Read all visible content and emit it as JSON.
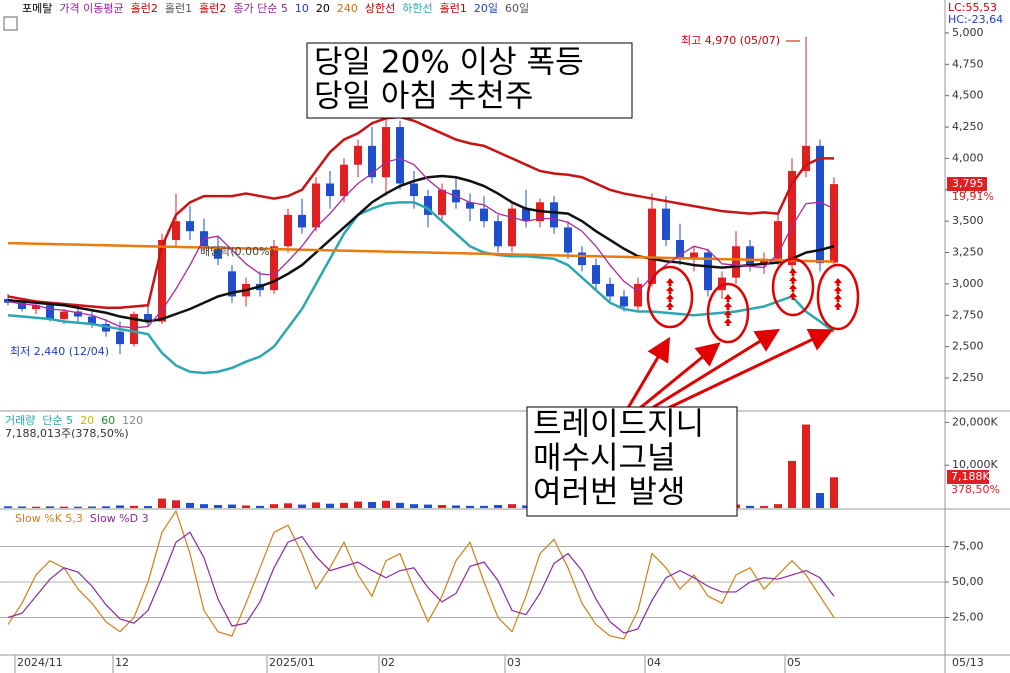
{
  "chart_data": [
    {
      "type": "candlestick",
      "legend": [
        {
          "text": "포메탈",
          "color": "#000000"
        },
        {
          "text": "가격 이동평균",
          "color": "#9b1fa3"
        },
        {
          "text": "홀런2",
          "color": "#c00000"
        },
        {
          "text": "홀런1",
          "color": "#555555"
        },
        {
          "text": "홀런2",
          "color": "#c00000"
        },
        {
          "text": "종가 단순 5",
          "color": "#9b1fa3"
        },
        {
          "text": "10",
          "color": "#1f3fbf"
        },
        {
          "text": "20",
          "color": "#000000"
        },
        {
          "text": "240",
          "color": "#e06d00"
        },
        {
          "text": "상한선",
          "color": "#c00000"
        },
        {
          "text": "하한선",
          "color": "#2aa7b0"
        },
        {
          "text": "홀런1",
          "color": "#c00000"
        },
        {
          "text": "20일",
          "color": "#1f3fbf"
        },
        {
          "text": "60일",
          "color": "#555555"
        }
      ],
      "corner_labels": [
        {
          "text": "LC:55,53",
          "color": "#d00000"
        },
        {
          "text": "HC:-23,64",
          "color": "#1f3fbf"
        }
      ],
      "annotations": [
        "당일 20% 이상 폭등",
        "당일 아침 추천주",
        "트레이드지니",
        "매수시그널",
        "여러번 발생",
        "최고 4,970 (05/07)",
        "최저 2,440 (12/04)",
        "배당락(0.00%)"
      ],
      "last_label": "3,795",
      "change_label": "19,91%",
      "up_color": "#e02020",
      "down_color": "#1f4fcf",
      "open": [
        2880,
        2850,
        2800,
        2830,
        2720,
        2780,
        2740,
        2680,
        2620,
        2520,
        2760,
        2700,
        3350,
        3500,
        3420,
        3300,
        3100,
        2900,
        3000,
        2950,
        3300,
        3550,
        3450,
        3800,
        3700,
        3950,
        4100,
        3850,
        4250,
        3800,
        3700,
        3550,
        3750,
        3650,
        3600,
        3500,
        3300,
        3600,
        3500,
        3650,
        3450,
        3250,
        3150,
        3000,
        2900,
        2820,
        3000,
        3600,
        3350,
        3200,
        3250,
        2950,
        3050,
        3300,
        3150,
        3200,
        3150,
        3900,
        4100,
        3170
      ],
      "high": [
        2920,
        2880,
        2860,
        2850,
        2800,
        2820,
        2780,
        2720,
        2700,
        2780,
        2820,
        3400,
        3720,
        3620,
        3520,
        3380,
        3150,
        3050,
        3100,
        3350,
        3600,
        3680,
        3850,
        3900,
        4000,
        4150,
        4250,
        4320,
        4300,
        3900,
        3750,
        3800,
        3850,
        3720,
        3700,
        3550,
        3650,
        3750,
        3680,
        3700,
        3500,
        3300,
        3200,
        3050,
        2950,
        3050,
        3720,
        3700,
        3480,
        3300,
        3280,
        3100,
        3420,
        3350,
        3250,
        3550,
        4000,
        4970,
        4150,
        3850
      ],
      "low": [
        2830,
        2780,
        2760,
        2700,
        2680,
        2700,
        2650,
        2580,
        2440,
        2500,
        2660,
        2680,
        3300,
        3350,
        3250,
        3150,
        2850,
        2820,
        2900,
        2920,
        3250,
        3400,
        3420,
        3600,
        3650,
        3850,
        3800,
        3700,
        3750,
        3600,
        3450,
        3500,
        3600,
        3500,
        3450,
        3250,
        3250,
        3450,
        3450,
        3400,
        3200,
        3100,
        2950,
        2850,
        2780,
        2780,
        2980,
        3300,
        3150,
        3100,
        2900,
        2880,
        3000,
        3100,
        3080,
        3150,
        3100,
        3850,
        3100,
        3150
      ],
      "close": [
        2850,
        2800,
        2830,
        2720,
        2780,
        2740,
        2680,
        2620,
        2520,
        2760,
        2700,
        3350,
        3500,
        3420,
        3300,
        3200,
        2900,
        3000,
        2950,
        3300,
        3550,
        3450,
        3800,
        3700,
        3950,
        4100,
        3850,
        4250,
        3800,
        3700,
        3550,
        3750,
        3650,
        3600,
        3500,
        3300,
        3600,
        3500,
        3650,
        3450,
        3250,
        3150,
        3000,
        2900,
        2820,
        3000,
        3600,
        3350,
        3200,
        3250,
        2950,
        3050,
        3300,
        3150,
        3200,
        3500,
        3900,
        4100,
        3165,
        3795
      ],
      "series": [
        {
          "color": "#c81414",
          "values": [
            2900,
            2880,
            2860,
            2850,
            2840,
            2830,
            2820,
            2810,
            2810,
            2820,
            2830,
            3300,
            3550,
            3650,
            3700,
            3700,
            3700,
            3720,
            3700,
            3680,
            3700,
            3750,
            3900,
            4050,
            4150,
            4200,
            4280,
            4320,
            4330,
            4300,
            4250,
            4200,
            4150,
            4120,
            4100,
            4050,
            4000,
            3950,
            3900,
            3880,
            3870,
            3850,
            3800,
            3750,
            3720,
            3700,
            3680,
            3660,
            3640,
            3620,
            3600,
            3580,
            3570,
            3560,
            3570,
            3560,
            3800,
            3950,
            4000,
            4000
          ]
        },
        {
          "color": "#2aa7b0",
          "values": [
            2750,
            2740,
            2730,
            2720,
            2700,
            2690,
            2680,
            2660,
            2640,
            2620,
            2600,
            2450,
            2350,
            2300,
            2290,
            2300,
            2330,
            2380,
            2420,
            2500,
            2650,
            2800,
            3000,
            3200,
            3400,
            3550,
            3600,
            3640,
            3650,
            3650,
            3600,
            3500,
            3400,
            3300,
            3250,
            3230,
            3220,
            3220,
            3210,
            3200,
            3150,
            3050,
            2950,
            2850,
            2800,
            2780,
            2780,
            2770,
            2760,
            2750,
            2760,
            2770,
            2780,
            2800,
            2820,
            2860,
            2900,
            2780,
            2700,
            2620
          ]
        },
        {
          "color": "#111111",
          "values": [
            2870,
            2860,
            2850,
            2840,
            2830,
            2810,
            2790,
            2770,
            2740,
            2720,
            2700,
            2720,
            2760,
            2800,
            2850,
            2900,
            2930,
            2950,
            2980,
            3020,
            3080,
            3150,
            3250,
            3350,
            3450,
            3550,
            3650,
            3720,
            3780,
            3820,
            3850,
            3860,
            3850,
            3820,
            3780,
            3720,
            3650,
            3600,
            3580,
            3570,
            3560,
            3500,
            3420,
            3350,
            3280,
            3220,
            3200,
            3180,
            3170,
            3150,
            3140,
            3130,
            3140,
            3150,
            3160,
            3170,
            3200,
            3250,
            3270,
            3300
          ]
        },
        {
          "color": "#e87a10",
          "values": [
            3325,
            3322.5,
            3320,
            3317.5,
            3315,
            3312.5,
            3310,
            3307.5,
            3305,
            3302.5,
            3300,
            3297.5,
            3295,
            3292.5,
            3290,
            3287.5,
            3285,
            3282.5,
            3280,
            3277.5,
            3275,
            3272.5,
            3270,
            3267.5,
            3265,
            3262.5,
            3260,
            3257.5,
            3255,
            3252.5,
            3250,
            3247.5,
            3245,
            3242.5,
            3240,
            3237.5,
            3235,
            3232.5,
            3230,
            3227.5,
            3225,
            3222.5,
            3220,
            3217.5,
            3215,
            3212.5,
            3210,
            3207.5,
            3205,
            3202.5,
            3200,
            3197.5,
            3195,
            3192.5,
            3190,
            3187.5,
            3185,
            3182.5,
            3180,
            3177.5
          ]
        },
        {
          "color": "#b0289e",
          "values": [
            2860,
            2840,
            2830,
            2800,
            2790,
            2770,
            2750,
            2710,
            2660,
            2650,
            2660,
            2790,
            2960,
            3150,
            3360,
            3380,
            3270,
            3160,
            3080,
            3070,
            3180,
            3300,
            3450,
            3560,
            3690,
            3800,
            3880,
            3970,
            4000,
            3950,
            3830,
            3740,
            3700,
            3650,
            3630,
            3560,
            3530,
            3500,
            3520,
            3520,
            3490,
            3420,
            3300,
            3150,
            3020,
            2940,
            3060,
            3150,
            3230,
            3300,
            3270,
            3160,
            3150,
            3140,
            3130,
            3240,
            3460,
            3640,
            3650,
            3600
          ]
        }
      ],
      "ylim": [
        1995,
        5143
      ],
      "yticks": [
        {
          "value": 2250,
          "label": "2,250"
        },
        {
          "value": 2500,
          "label": "2,500"
        },
        {
          "value": 2750,
          "label": "2,750"
        },
        {
          "value": 3000,
          "label": "3,000"
        },
        {
          "value": 3250,
          "label": "3,250"
        },
        {
          "value": 3500,
          "label": "3,500"
        },
        {
          "value": 3750,
          "label": "3,750"
        },
        {
          "value": 4000,
          "label": "4,000"
        },
        {
          "value": 4250,
          "label": "4,250"
        },
        {
          "value": 4500,
          "label": "4,500"
        },
        {
          "value": 4750,
          "label": "4,750"
        },
        {
          "value": 5000,
          "label": "5,000"
        }
      ]
    },
    {
      "type": "bar",
      "legend": [
        {
          "text": "거래량",
          "color": "#2aa7b0"
        },
        {
          "text": "단순 5",
          "color": "#2aa7b0"
        },
        {
          "text": "20",
          "color": "#d6b300"
        },
        {
          "text": "60",
          "color": "#2a8a2a"
        },
        {
          "text": "120",
          "color": "#888888"
        }
      ],
      "info": "7,188,013주(378,50%)",
      "last_label": "7,188K",
      "change_label": "378,50%",
      "values": [
        400,
        350,
        300,
        380,
        320,
        300,
        350,
        400,
        600,
        500,
        450,
        2200,
        1800,
        1200,
        900,
        700,
        800,
        600,
        500,
        900,
        1100,
        800,
        1300,
        1000,
        1200,
        1500,
        1400,
        1700,
        1200,
        900,
        800,
        700,
        600,
        500,
        500,
        700,
        900,
        600,
        500,
        600,
        500,
        450,
        500,
        450,
        500,
        600,
        1500,
        900,
        700,
        500,
        600,
        500,
        800,
        500,
        450,
        900,
        11000,
        19500,
        3500,
        7188
      ],
      "ylim": [
        0,
        22200
      ],
      "yticks": [
        {
          "value": 10000,
          "label": "10,000K"
        },
        {
          "value": 20000,
          "label": "20,000K"
        }
      ]
    },
    {
      "type": "line",
      "legend": [
        {
          "text": "Slow %K 5,3",
          "color": "#d0801a"
        },
        {
          "text": "Slow %D 3",
          "color": "#8a2aa0"
        }
      ],
      "categories": [
        null,
        "2024/11",
        null,
        null,
        null,
        null,
        null,
        null,
        "12",
        null,
        null,
        null,
        null,
        null,
        null,
        null,
        null,
        null,
        null,
        "2025/01",
        null,
        null,
        null,
        null,
        null,
        null,
        null,
        "02",
        null,
        null,
        null,
        null,
        null,
        null,
        null,
        null,
        "03",
        null,
        null,
        null,
        null,
        null,
        null,
        null,
        null,
        null,
        "04",
        null,
        null,
        null,
        null,
        null,
        null,
        null,
        null,
        null,
        "05",
        null,
        null,
        null
      ],
      "x_end_label": "05/13",
      "series": [
        {
          "color": "#d0801a",
          "values": [
            20,
            35,
            55,
            65,
            60,
            45,
            35,
            22,
            15,
            25,
            50,
            85,
            100,
            70,
            30,
            15,
            12,
            35,
            60,
            85,
            90,
            70,
            45,
            60,
            78,
            55,
            40,
            65,
            70,
            45,
            22,
            40,
            65,
            78,
            50,
            25,
            15,
            40,
            70,
            80,
            60,
            35,
            20,
            12,
            10,
            30,
            70,
            60,
            45,
            55,
            40,
            35,
            55,
            60,
            45,
            55,
            65,
            55,
            40,
            25
          ]
        },
        {
          "color": "#8a2aa0",
          "values": [
            25,
            28,
            40,
            52,
            60,
            57,
            47,
            34,
            24,
            21,
            30,
            53,
            78,
            85,
            67,
            38,
            19,
            21,
            36,
            60,
            78,
            82,
            68,
            58,
            61,
            64,
            58,
            53,
            58,
            60,
            46,
            36,
            42,
            61,
            64,
            51,
            30,
            27,
            42,
            63,
            70,
            58,
            38,
            22,
            14,
            17,
            37,
            53,
            58,
            53,
            47,
            43,
            43,
            50,
            53,
            52,
            55,
            58,
            53,
            40
          ]
        }
      ],
      "ylim": [
        0,
        100
      ],
      "yticks": [
        {
          "value": 25,
          "label": "25,00"
        },
        {
          "value": 50,
          "label": "50,00"
        },
        {
          "value": 75,
          "label": "75,00"
        }
      ],
      "grid": true
    }
  ]
}
